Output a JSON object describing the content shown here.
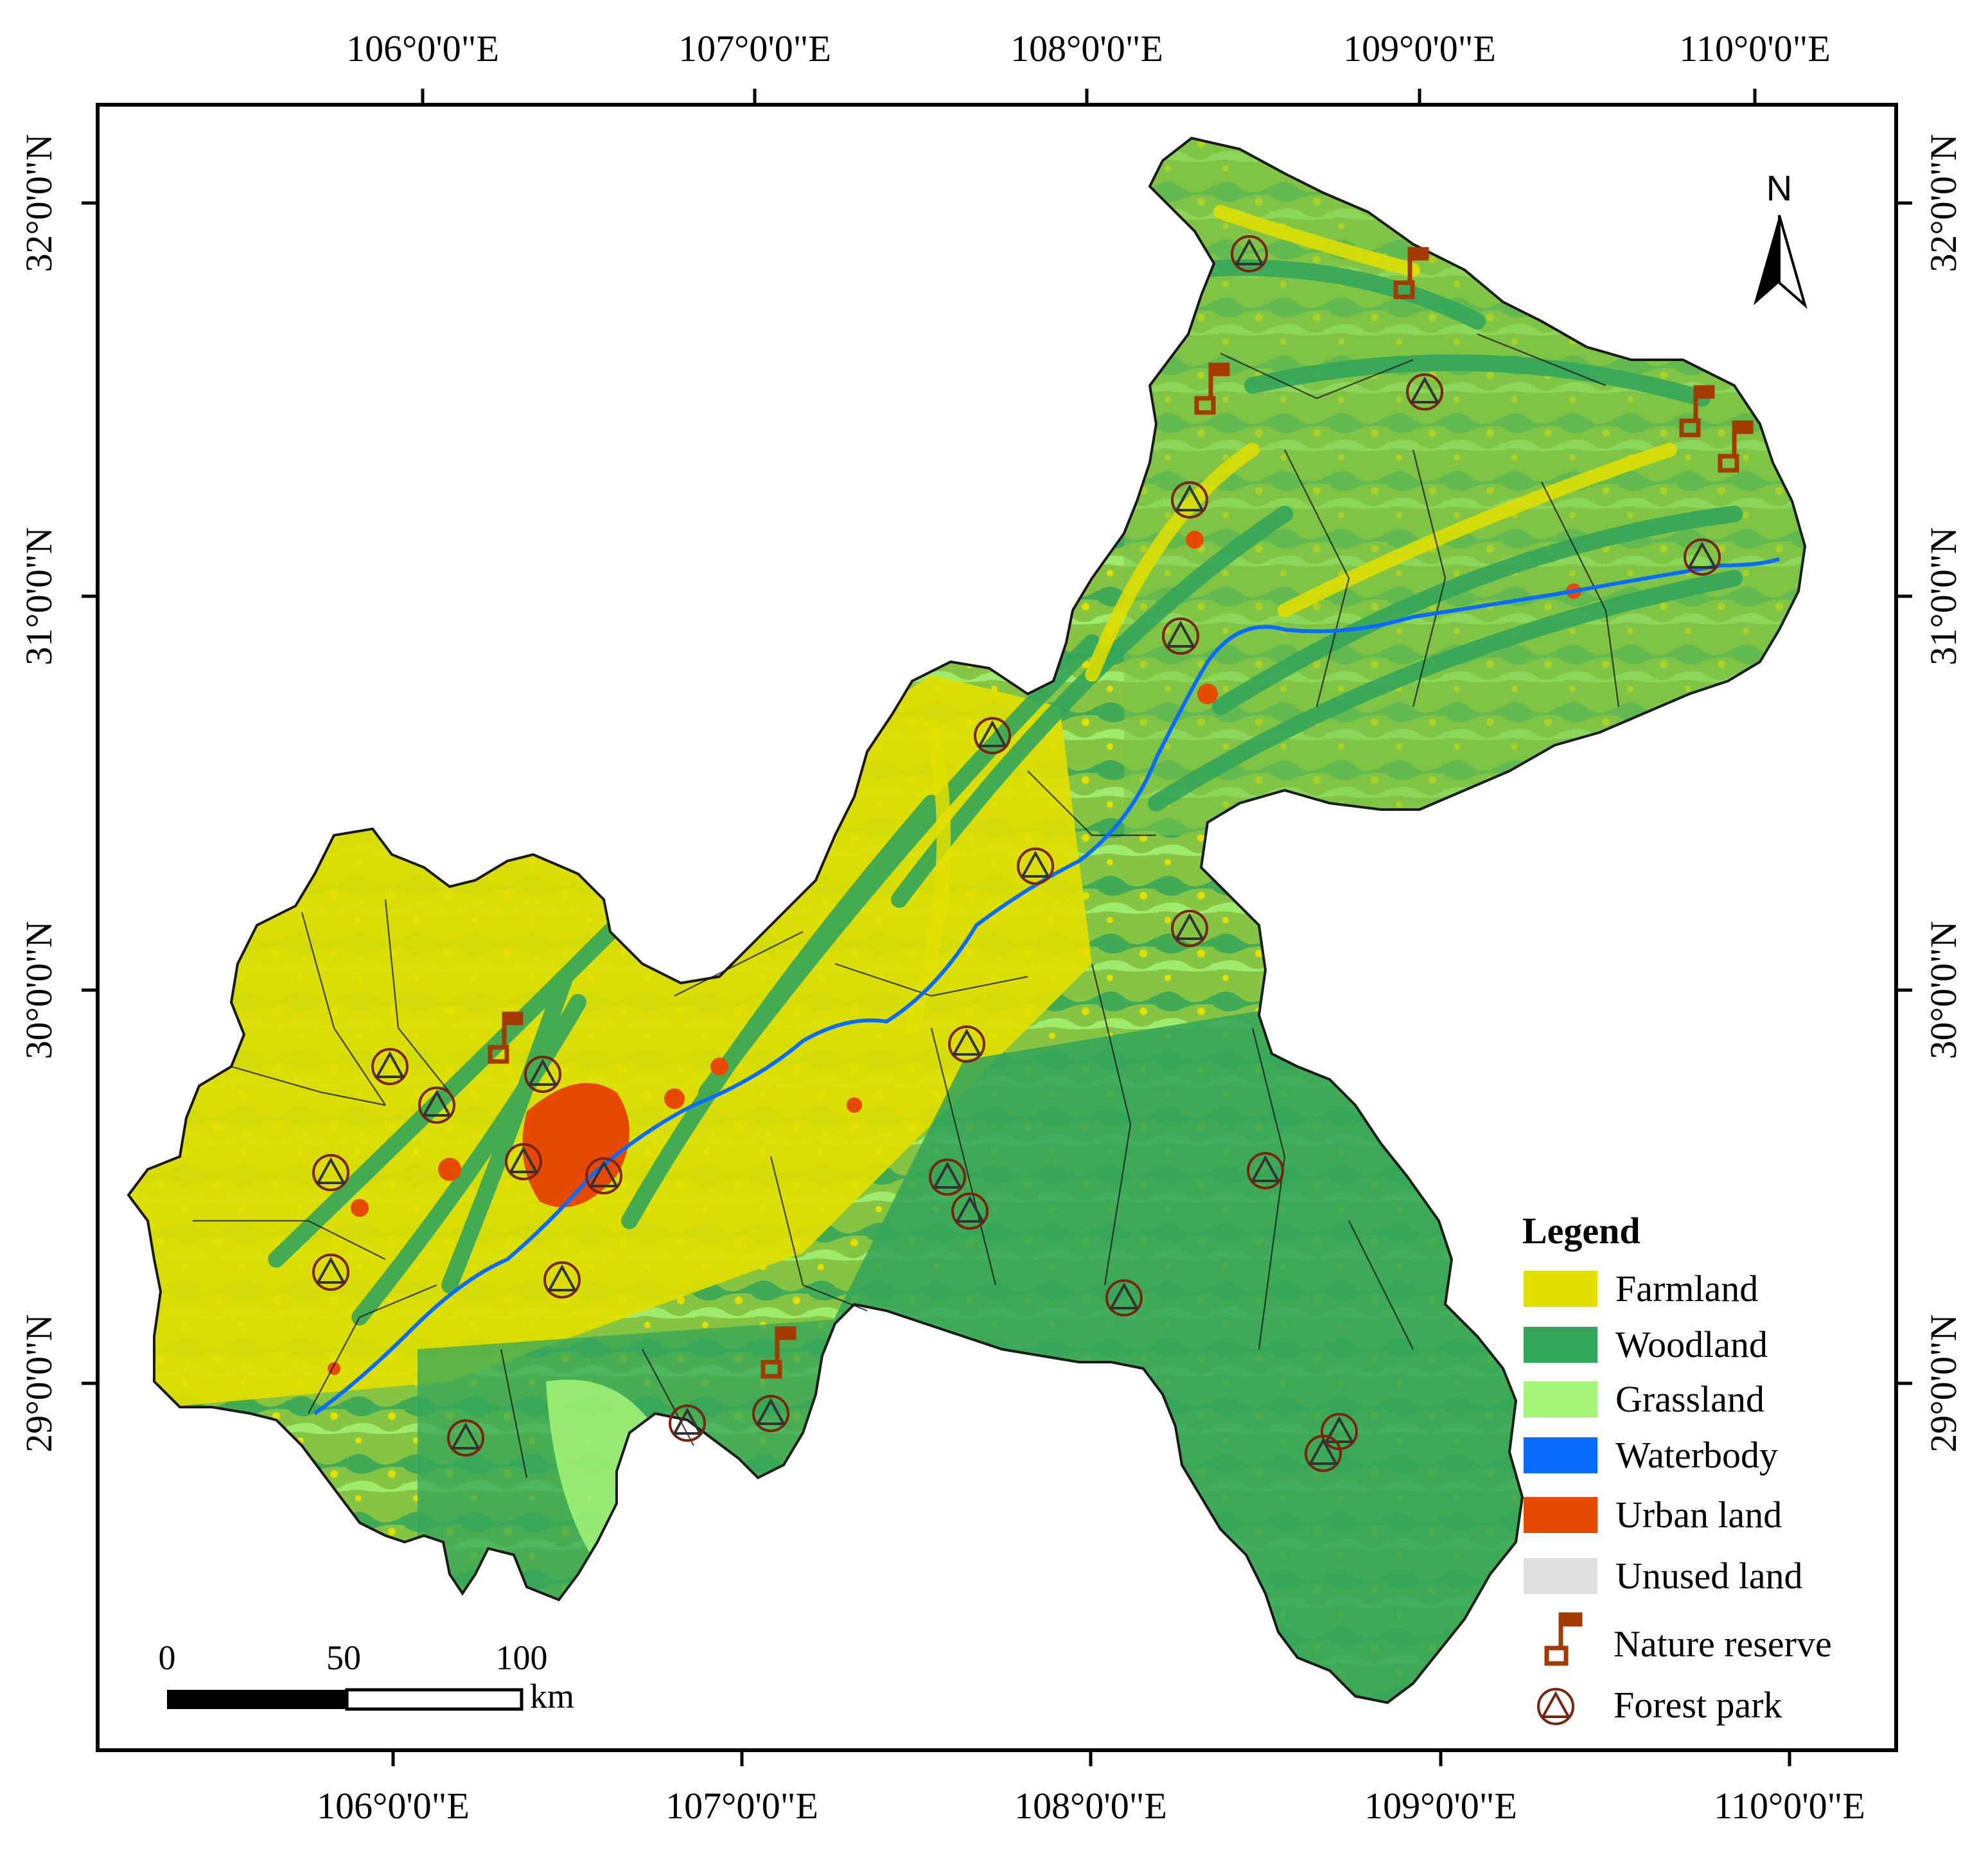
{
  "axes": {
    "lon_labels": [
      "106°0'0\"E",
      "107°0'0\"E",
      "108°0'0\"E",
      "109°0'0\"E",
      "110°0'0\"E"
    ],
    "lat_labels": [
      "32°0'0\"N",
      "31°0'0\"N",
      "30°0'0\"N",
      "29°0'0\"N"
    ]
  },
  "north_arrow": {
    "label": "N"
  },
  "scale_bar": {
    "ticks": [
      "0",
      "50",
      "100"
    ],
    "unit": "km"
  },
  "legend": {
    "title": "Legend",
    "land_use": [
      {
        "label": "Farmland",
        "color": "#e3e000"
      },
      {
        "label": "Woodland",
        "color": "#34a65a"
      },
      {
        "label": "Grassland",
        "color": "#a5f578"
      },
      {
        "label": "Waterbody",
        "color": "#0a6bff"
      },
      {
        "label": "Urban land",
        "color": "#e64a00"
      },
      {
        "label": "Unused land",
        "color": "#e0e0e0"
      }
    ],
    "symbols": [
      {
        "label": "Nature reserve",
        "icon": "nature-reserve-flag-icon",
        "color": "#a33a00"
      },
      {
        "label": "Forest park",
        "icon": "forest-park-triangle-icon",
        "color": "#8b2a10"
      }
    ]
  }
}
